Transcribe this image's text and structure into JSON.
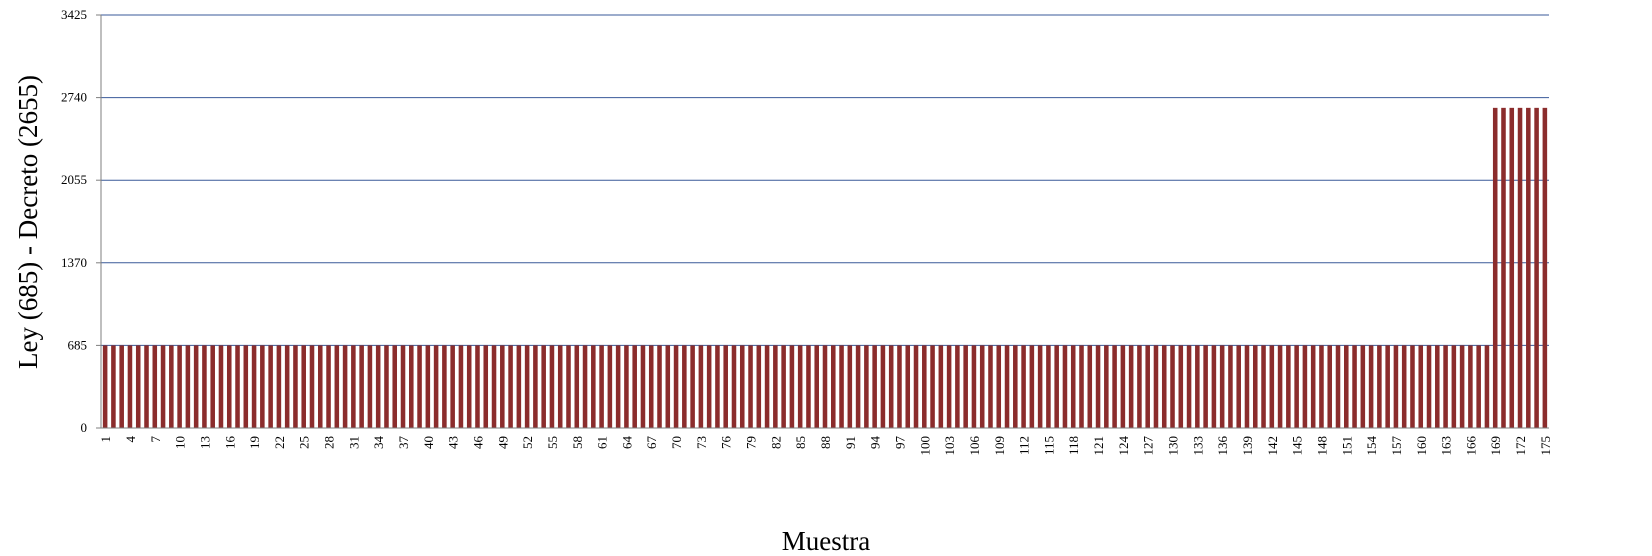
{
  "chart_data": {
    "type": "bar",
    "title": "",
    "xlabel": "Muestra",
    "ylabel": "Ley (685) - Decreto (2655)",
    "ylim": [
      0,
      3425
    ],
    "yticks": [
      0,
      685,
      1370,
      2055,
      2740,
      3425
    ],
    "x_tick_step": 3,
    "grid": true,
    "legend": "none",
    "colors": {
      "bar_fill": "#8B2C2C",
      "bar_edge": "#6B1E1E",
      "gridline": "#3A5A99",
      "axis": "#7F7F7F"
    },
    "categories": [
      "1",
      "2",
      "3",
      "4",
      "5",
      "6",
      "7",
      "8",
      "9",
      "10",
      "11",
      "12",
      "13",
      "14",
      "15",
      "16",
      "17",
      "18",
      "19",
      "20",
      "21",
      "22",
      "23",
      "24",
      "25",
      "26",
      "27",
      "28",
      "29",
      "30",
      "31",
      "32",
      "33",
      "34",
      "35",
      "36",
      "37",
      "38",
      "39",
      "40",
      "41",
      "42",
      "43",
      "44",
      "45",
      "46",
      "47",
      "48",
      "49",
      "50",
      "51",
      "52",
      "53",
      "54",
      "55",
      "56",
      "57",
      "58",
      "59",
      "60",
      "61",
      "62",
      "63",
      "64",
      "65",
      "66",
      "67",
      "68",
      "69",
      "70",
      "71",
      "72",
      "73",
      "74",
      "75",
      "76",
      "77",
      "78",
      "79",
      "80",
      "81",
      "82",
      "83",
      "84",
      "85",
      "86",
      "87",
      "88",
      "89",
      "90",
      "91",
      "92",
      "93",
      "94",
      "95",
      "96",
      "97",
      "98",
      "99",
      "100",
      "101",
      "102",
      "103",
      "104",
      "105",
      "106",
      "107",
      "108",
      "109",
      "110",
      "111",
      "112",
      "113",
      "114",
      "115",
      "116",
      "117",
      "118",
      "119",
      "120",
      "121",
      "122",
      "123",
      "124",
      "125",
      "126",
      "127",
      "128",
      "129",
      "130",
      "131",
      "132",
      "133",
      "134",
      "135",
      "136",
      "137",
      "138",
      "139",
      "140",
      "141",
      "142",
      "143",
      "144",
      "145",
      "146",
      "147",
      "148",
      "149",
      "150",
      "151",
      "152",
      "153",
      "154",
      "155",
      "156",
      "157",
      "158",
      "159",
      "160",
      "161",
      "162",
      "163",
      "164",
      "165",
      "166",
      "167",
      "168",
      "169",
      "170",
      "171",
      "172",
      "173",
      "174",
      "175"
    ],
    "values": [
      685,
      685,
      685,
      685,
      685,
      685,
      685,
      685,
      685,
      685,
      685,
      685,
      685,
      685,
      685,
      685,
      685,
      685,
      685,
      685,
      685,
      685,
      685,
      685,
      685,
      685,
      685,
      685,
      685,
      685,
      685,
      685,
      685,
      685,
      685,
      685,
      685,
      685,
      685,
      685,
      685,
      685,
      685,
      685,
      685,
      685,
      685,
      685,
      685,
      685,
      685,
      685,
      685,
      685,
      685,
      685,
      685,
      685,
      685,
      685,
      685,
      685,
      685,
      685,
      685,
      685,
      685,
      685,
      685,
      685,
      685,
      685,
      685,
      685,
      685,
      685,
      685,
      685,
      685,
      685,
      685,
      685,
      685,
      685,
      685,
      685,
      685,
      685,
      685,
      685,
      685,
      685,
      685,
      685,
      685,
      685,
      685,
      685,
      685,
      685,
      685,
      685,
      685,
      685,
      685,
      685,
      685,
      685,
      685,
      685,
      685,
      685,
      685,
      685,
      685,
      685,
      685,
      685,
      685,
      685,
      685,
      685,
      685,
      685,
      685,
      685,
      685,
      685,
      685,
      685,
      685,
      685,
      685,
      685,
      685,
      685,
      685,
      685,
      685,
      685,
      685,
      685,
      685,
      685,
      685,
      685,
      685,
      685,
      685,
      685,
      685,
      685,
      685,
      685,
      685,
      685,
      685,
      685,
      685,
      685,
      685,
      685,
      685,
      685,
      685,
      685,
      685,
      685,
      2655,
      2655,
      2655,
      2655,
      2655,
      2655,
      2655
    ]
  }
}
